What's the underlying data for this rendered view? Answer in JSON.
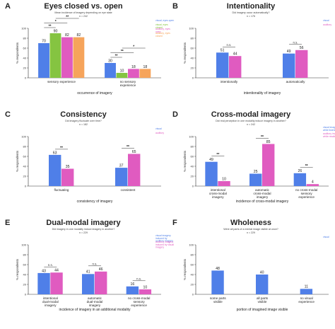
{
  "charts": [
    {
      "letter": "A",
      "title": "Eyes closed vs. open",
      "subtitle": "Mean incidence of imagery depending on eye state",
      "n": "n = 242",
      "ylabel": "% respondents",
      "xlabel": "occurrence of imagery",
      "legend": [
        {
          "label": "visual, eyes open",
          "color": "#4f7fe8"
        },
        {
          "label": "visual, eyes closed",
          "color": "#85c441"
        },
        {
          "label": "auditory, eyes open",
          "color": "#e05bc0"
        },
        {
          "label": "auditory, eyes closed",
          "color": "#f6a45b"
        }
      ],
      "categories": [
        "sensory experience",
        "no sensory experience"
      ],
      "values": [
        [
          70,
          90,
          82,
          82
        ],
        [
          30,
          10,
          18,
          18
        ]
      ],
      "brackets": [
        {
          "group": 0,
          "from": 0,
          "to": 1,
          "label": "**",
          "level": 0
        },
        {
          "group": 0,
          "from": 0,
          "to": 2,
          "label": "*",
          "level": 1
        },
        {
          "group": 0,
          "from": 1,
          "to": 3,
          "label": "**",
          "level": 2
        },
        {
          "group": 1,
          "from": 0,
          "to": 1,
          "label": "**",
          "level": 0
        },
        {
          "group": 1,
          "from": 0,
          "to": 2,
          "label": "**",
          "level": 1
        },
        {
          "group": 1,
          "from": 1,
          "to": 3,
          "label": "*",
          "level": 2
        }
      ]
    },
    {
      "letter": "B",
      "title": "Intentionality",
      "subtitle": "Did imagery occur automatically?",
      "n": "n = 176",
      "ylabel": "% respondents",
      "xlabel": "intentionality of imagery",
      "legend": [
        {
          "label": "visual",
          "color": "#4f7fe8"
        },
        {
          "label": "auditory",
          "color": "#e05bc0"
        }
      ],
      "categories": [
        "intentionally",
        "automatically"
      ],
      "values": [
        [
          51,
          44
        ],
        [
          49,
          56
        ]
      ],
      "brackets": [
        {
          "group": 0,
          "from": 0,
          "to": 1,
          "label": "n.s.",
          "level": 0
        },
        {
          "group": 1,
          "from": 0,
          "to": 1,
          "label": "n.s.",
          "level": 0
        }
      ]
    },
    {
      "letter": "C",
      "title": "Consistency",
      "subtitle": "Did imagery fluctuate over time?",
      "n": "n = 182",
      "ylabel": "% respondents",
      "xlabel": "consistency of imagery",
      "legend": [
        {
          "label": "visual",
          "color": "#4f7fe8"
        },
        {
          "label": "auditory",
          "color": "#e05bc0"
        }
      ],
      "categories": [
        "fluctuating",
        "consistent"
      ],
      "values": [
        [
          63,
          35
        ],
        [
          37,
          65
        ]
      ],
      "brackets": [
        {
          "group": 0,
          "from": 0,
          "to": 1,
          "label": "**",
          "level": 0
        },
        {
          "group": 1,
          "from": 0,
          "to": 1,
          "label": "**",
          "level": 0
        }
      ]
    },
    {
      "letter": "D",
      "title": "Cross-modal imagery",
      "subtitle": "Did real perception in one modality induce imagery in another?",
      "n": "n = 242",
      "ylabel": "% respondents",
      "xlabel": "incidence of cross-modal imagery",
      "legend": [
        {
          "label": "visual imagery while listening",
          "color": "#4f7fe8"
        },
        {
          "label": "auditory imagery while reading",
          "color": "#e05bc0"
        }
      ],
      "categories": [
        "intentional cross-modal imagery",
        "automatic cross-modal imagery",
        "no cross-modal sensory experience"
      ],
      "values": [
        [
          49,
          10
        ],
        [
          25,
          85
        ],
        [
          26,
          4
        ]
      ],
      "brackets": [
        {
          "group": 0,
          "from": 0,
          "to": 1,
          "label": "**",
          "level": 0
        },
        {
          "group": 1,
          "from": 0,
          "to": 1,
          "label": "**",
          "level": 0
        },
        {
          "group": 2,
          "from": 0,
          "to": 1,
          "label": "**",
          "level": 0
        }
      ]
    },
    {
      "letter": "E",
      "title": "Dual-modal imagery",
      "subtitle": "Did imagery in one modality induce imagery in another?",
      "n": "n = 229",
      "ylabel": "% respondents",
      "xlabel": "incidence of imagery in an additional modality",
      "legend": [
        {
          "label": "visual imagery induced by auditory imagery",
          "color": "#4f7fe8"
        },
        {
          "label": "auditory imagery induced by visual imagery",
          "color": "#e05bc0"
        }
      ],
      "categories": [
        "intentional dual-modal imagery",
        "automatic dual-modal imagery",
        "no cross-modal sensory experience"
      ],
      "values": [
        [
          43,
          44
        ],
        [
          41,
          46
        ],
        [
          16,
          10
        ]
      ],
      "brackets": [
        {
          "group": 0,
          "from": 0,
          "to": 1,
          "label": "n.s.",
          "level": 0
        },
        {
          "group": 1,
          "from": 0,
          "to": 1,
          "label": "n.s.",
          "level": 0
        },
        {
          "group": 2,
          "from": 0,
          "to": 1,
          "label": "n.s.",
          "level": 0
        }
      ]
    },
    {
      "letter": "F",
      "title": "Wholeness",
      "subtitle": "Were all parts of a mental image visible at once?",
      "n": "n = 229",
      "ylabel": "% respondents",
      "xlabel": "portion of imagined image visible",
      "legend": [
        {
          "label": "visual",
          "color": "#4f7fe8"
        }
      ],
      "categories": [
        "some parts visible",
        "all parts visible",
        "no visual experience"
      ],
      "values": [
        [
          48
        ],
        [
          40
        ],
        [
          11
        ]
      ],
      "brackets": []
    }
  ],
  "yaxis": {
    "ticks": [
      0,
      20,
      40,
      60,
      80,
      100
    ],
    "range": [
      0,
      100
    ]
  }
}
